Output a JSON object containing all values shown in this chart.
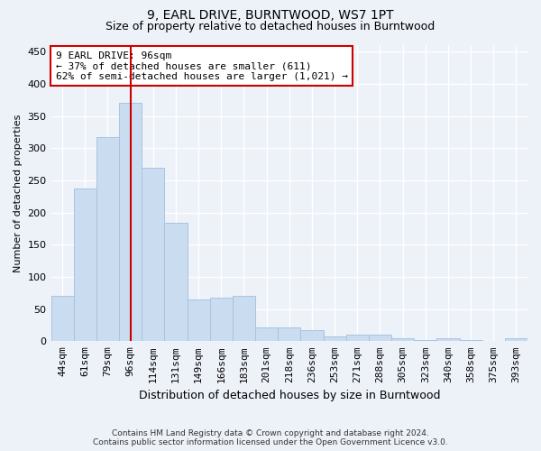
{
  "title1": "9, EARL DRIVE, BURNTWOOD, WS7 1PT",
  "title2": "Size of property relative to detached houses in Burntwood",
  "xlabel": "Distribution of detached houses by size in Burntwood",
  "ylabel": "Number of detached properties",
  "categories": [
    "44sqm",
    "61sqm",
    "79sqm",
    "96sqm",
    "114sqm",
    "131sqm",
    "149sqm",
    "166sqm",
    "183sqm",
    "201sqm",
    "218sqm",
    "236sqm",
    "253sqm",
    "271sqm",
    "288sqm",
    "305sqm",
    "323sqm",
    "340sqm",
    "358sqm",
    "375sqm",
    "393sqm"
  ],
  "values": [
    70,
    237,
    317,
    370,
    270,
    184,
    65,
    68,
    70,
    22,
    21,
    17,
    8,
    10,
    10,
    4,
    2,
    4,
    2,
    1,
    4
  ],
  "bar_color": "#c9dcf0",
  "bar_edge_color": "#a8c4e0",
  "vline_x_index": 3,
  "vline_color": "#cc0000",
  "annotation_text": "9 EARL DRIVE: 96sqm\n← 37% of detached houses are smaller (611)\n62% of semi-detached houses are larger (1,021) →",
  "annotation_box_facecolor": "#ffffff",
  "annotation_box_edgecolor": "#cc0000",
  "ylim": [
    0,
    460
  ],
  "yticks": [
    0,
    50,
    100,
    150,
    200,
    250,
    300,
    350,
    400,
    450
  ],
  "footer": "Contains HM Land Registry data © Crown copyright and database right 2024.\nContains public sector information licensed under the Open Government Licence v3.0.",
  "bg_color": "#edf1f8",
  "grid_color": "#ffffff",
  "title1_fontsize": 10,
  "title2_fontsize": 9,
  "xlabel_fontsize": 9,
  "ylabel_fontsize": 8,
  "tick_fontsize": 8,
  "footer_fontsize": 6.5
}
